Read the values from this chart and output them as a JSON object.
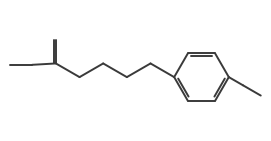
{
  "bg_color": "#ffffff",
  "line_color": "#3a3a3a",
  "line_width": 1.4,
  "figure_size": [
    2.71,
    1.41
  ],
  "dpi": 100
}
